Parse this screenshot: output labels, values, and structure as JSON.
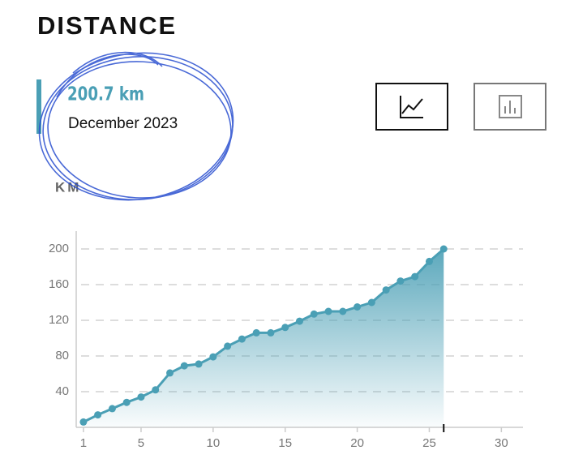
{
  "header": {
    "title": "DISTANCE",
    "total": "200.7 km",
    "period": "December 2023",
    "unit_label": "KM"
  },
  "chart_data": {
    "type": "area",
    "x": [
      1,
      2,
      3,
      4,
      5,
      6,
      7,
      8,
      9,
      10,
      11,
      12,
      13,
      14,
      15,
      16,
      17,
      18,
      19,
      20,
      21,
      22,
      23,
      24,
      25,
      26
    ],
    "values": [
      6,
      14,
      21,
      28,
      34,
      42,
      61,
      69,
      71,
      79,
      91,
      99,
      106,
      106,
      112,
      119,
      127,
      130,
      130,
      135,
      140,
      154,
      164,
      169,
      186,
      200
    ],
    "color": "#4a9fb5",
    "xlim": [
      0.5,
      31.5
    ],
    "ylim": [
      0,
      220
    ],
    "xticks": [
      1,
      5,
      10,
      15,
      20,
      25,
      30
    ],
    "yticks": [
      40,
      80,
      120,
      160,
      200
    ],
    "grid": true
  }
}
